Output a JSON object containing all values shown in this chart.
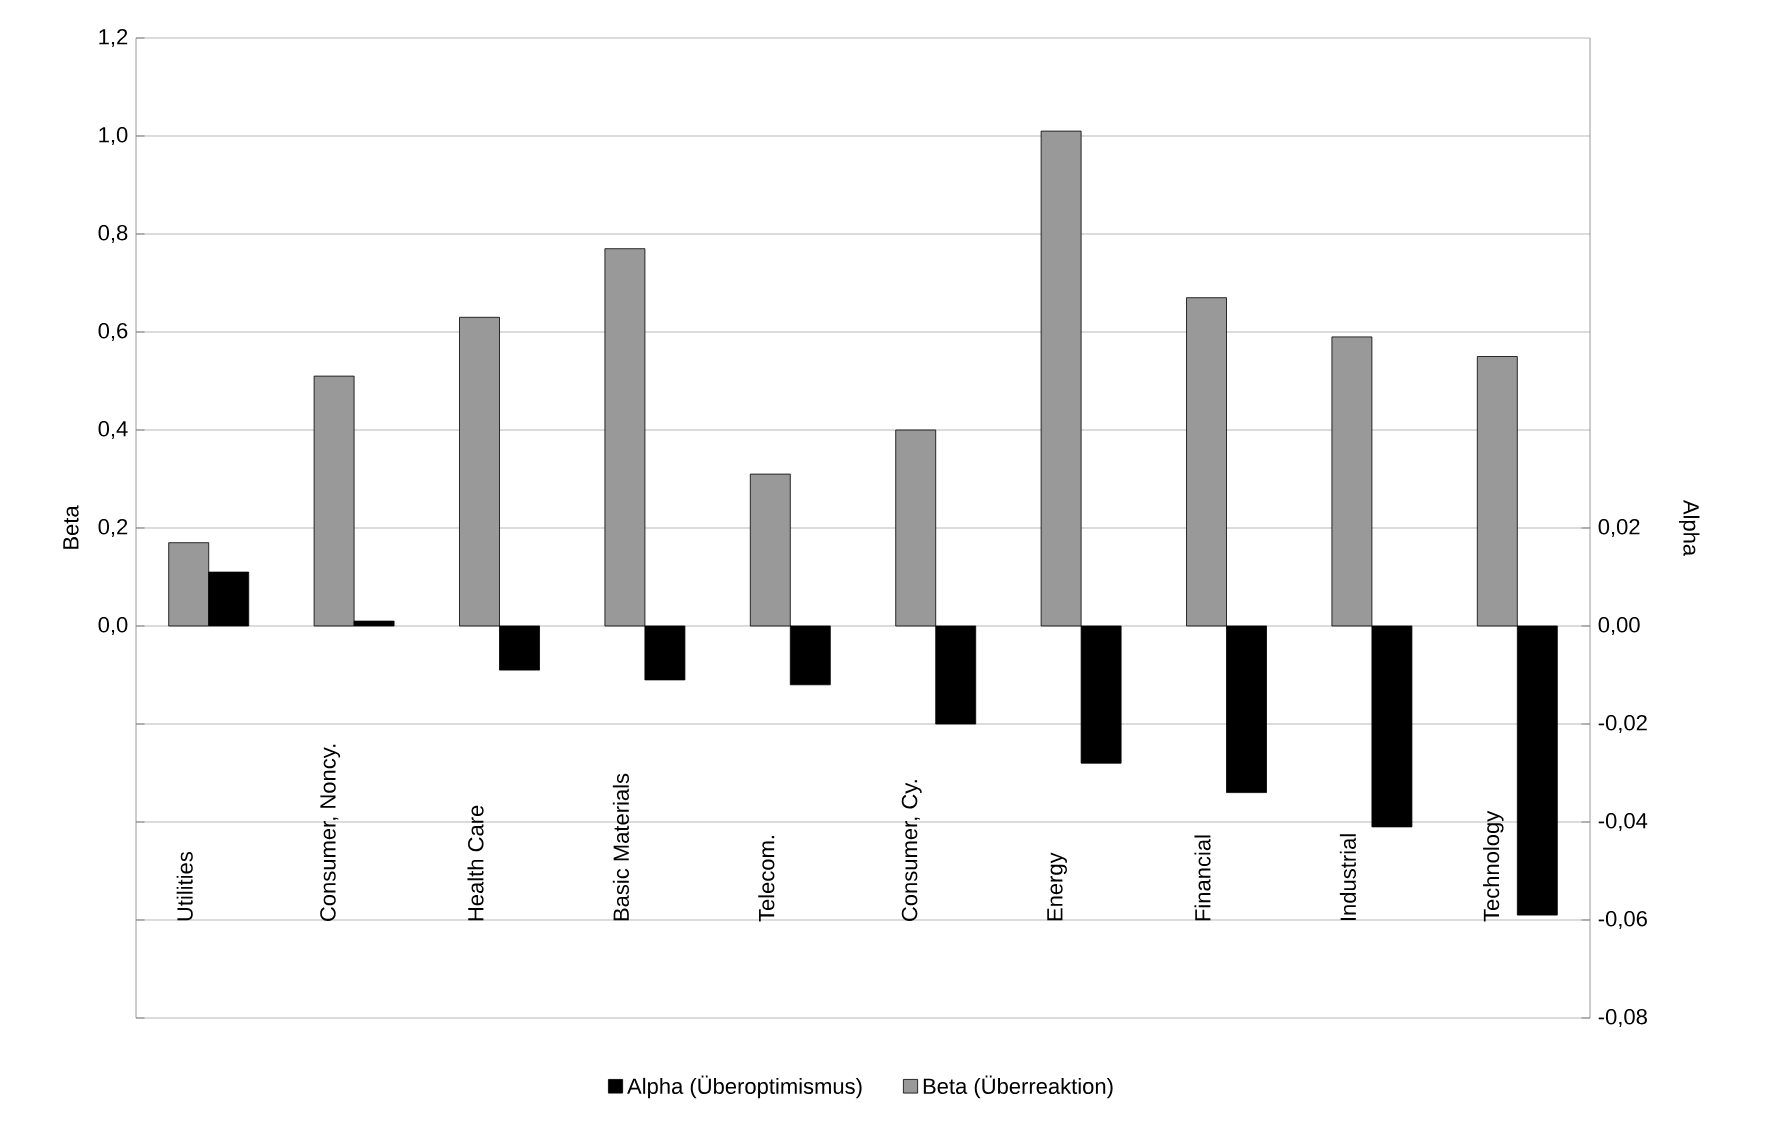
{
  "chart_data": {
    "type": "bar",
    "categories": [
      "Utilities",
      "Consumer, Noncy.",
      "Health Care",
      "Basic Materials",
      "Telecom.",
      "Consumer, Cy.",
      "Energy",
      "Financial",
      "Industrial",
      "Technology"
    ],
    "series": [
      {
        "name": "Alpha (Überoptimismus)",
        "color": "#000000",
        "axis": "y2",
        "values": [
          0.011,
          0.001,
          -0.009,
          -0.011,
          -0.012,
          -0.02,
          -0.028,
          -0.034,
          -0.041,
          -0.059
        ]
      },
      {
        "name": "Beta (Überreaktion)",
        "color": "#999999",
        "values": [
          0.17,
          0.51,
          0.63,
          0.77,
          0.31,
          0.4,
          1.01,
          0.67,
          0.59,
          0.55
        ]
      }
    ],
    "ylabel": "Beta",
    "y2label": "Alpha",
    "ylim": [
      -0.8,
      1.2
    ],
    "yticks": [
      {
        "value": -0.8,
        "label": null
      },
      {
        "value": -0.6,
        "label": null
      },
      {
        "value": -0.4,
        "label": null
      },
      {
        "value": -0.2,
        "label": null
      },
      {
        "value": 0.0,
        "label": "0,0"
      },
      {
        "value": 0.2,
        "label": "0,2"
      },
      {
        "value": 0.4,
        "label": "0,4"
      },
      {
        "value": 0.6,
        "label": "0,6"
      },
      {
        "value": 0.8,
        "label": "0,8"
      },
      {
        "value": 1.0,
        "label": "1,0"
      },
      {
        "value": 1.2,
        "label": "1,2"
      }
    ],
    "y2lim": [
      -0.08,
      0.12
    ],
    "y2ticks": [
      {
        "value": -0.08,
        "label": "-0,08"
      },
      {
        "value": -0.06,
        "label": "-0,06"
      },
      {
        "value": -0.04,
        "label": "-0,04"
      },
      {
        "value": -0.02,
        "label": "-0,02"
      },
      {
        "value": 0.0,
        "label": "0,00"
      },
      {
        "value": 0.02,
        "label": "0,02"
      }
    ],
    "grid": "y",
    "legend": "bottom"
  }
}
